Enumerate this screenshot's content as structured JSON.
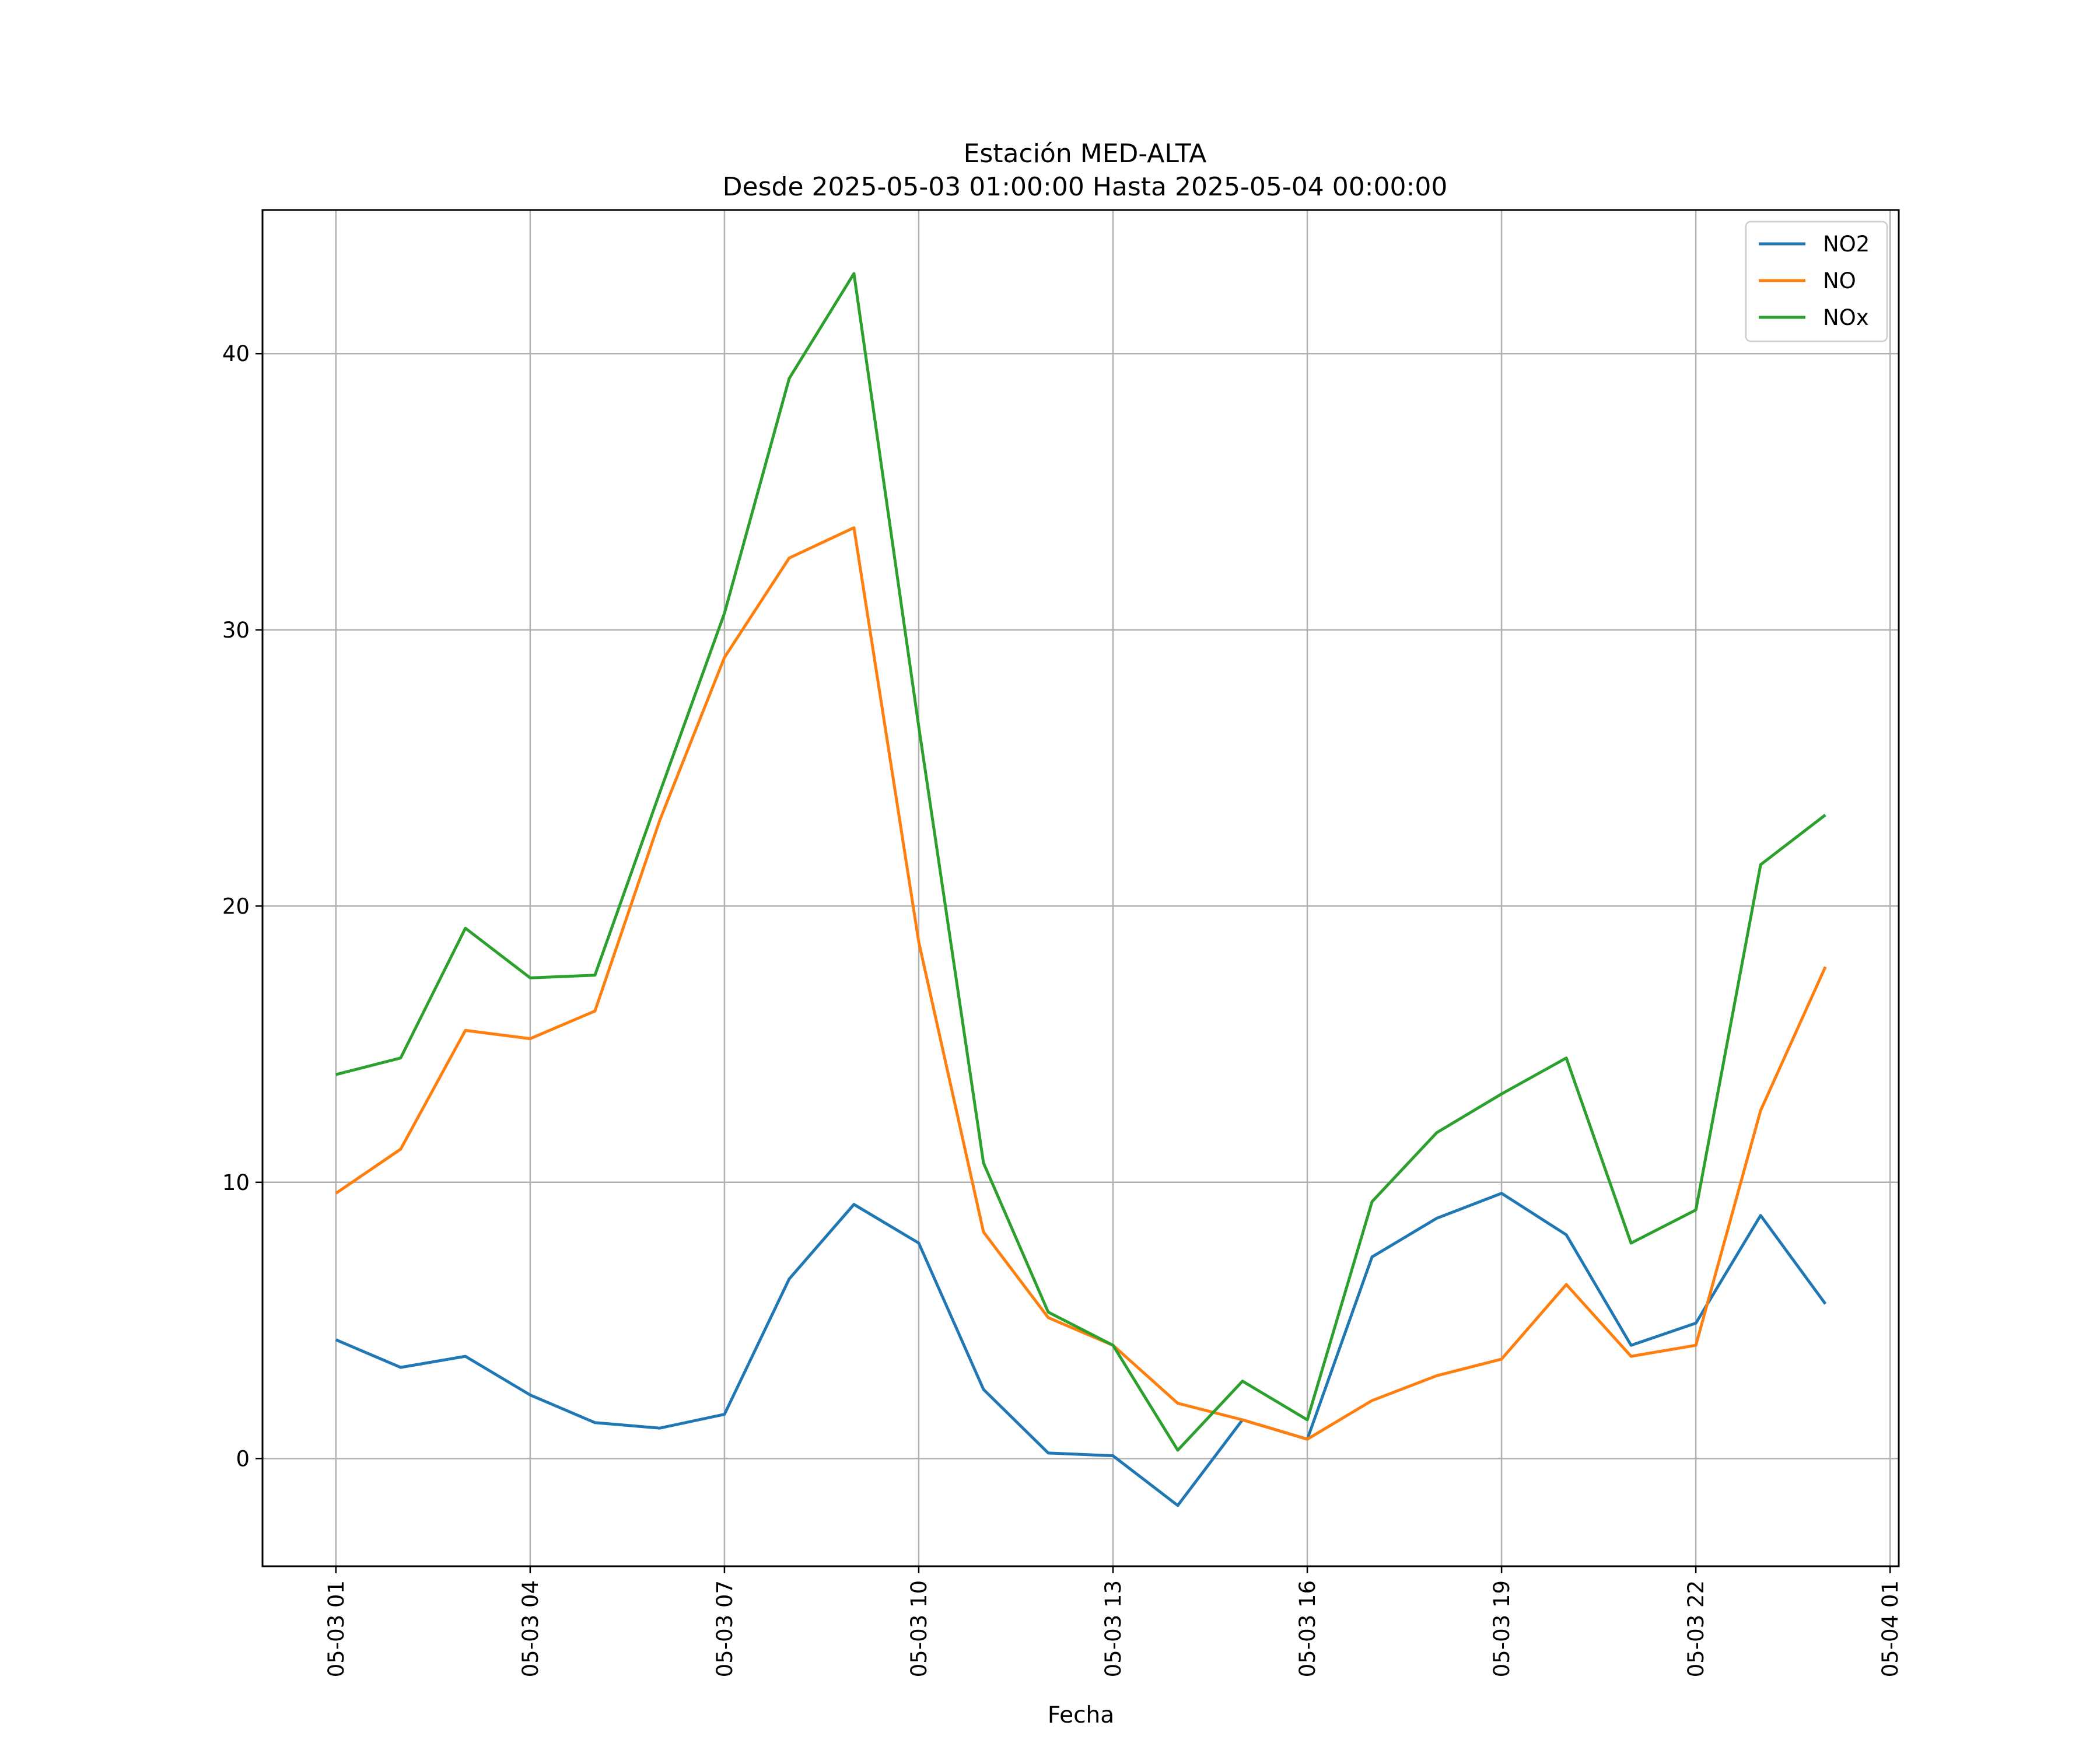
{
  "chart_data": {
    "type": "line",
    "title": "Estación MED-ALTA",
    "subtitle": "Desde 2025-05-03 01:00:00 Hasta 2025-05-04 00:00:00",
    "xlabel": "Fecha",
    "ylabel": "",
    "x": [
      "2025-05-03 01:00",
      "2025-05-03 02:00",
      "2025-05-03 03:00",
      "2025-05-03 04:00",
      "2025-05-03 05:00",
      "2025-05-03 06:00",
      "2025-05-03 07:00",
      "2025-05-03 08:00",
      "2025-05-03 09:00",
      "2025-05-03 10:00",
      "2025-05-03 11:00",
      "2025-05-03 12:00",
      "2025-05-03 13:00",
      "2025-05-03 14:00",
      "2025-05-03 15:00",
      "2025-05-03 16:00",
      "2025-05-03 17:00",
      "2025-05-03 18:00",
      "2025-05-03 19:00",
      "2025-05-03 20:00",
      "2025-05-03 21:00",
      "2025-05-03 22:00",
      "2025-05-03 23:00",
      "2025-05-04 00:00"
    ],
    "xlim": [
      "2025-05-02 23:52",
      "2025-05-04 01:08"
    ],
    "xticks": [
      "2025-05-03 01:00",
      "2025-05-03 04:00",
      "2025-05-03 07:00",
      "2025-05-03 10:00",
      "2025-05-03 13:00",
      "2025-05-03 16:00",
      "2025-05-03 19:00",
      "2025-05-03 22:00",
      "2025-05-04 01:00"
    ],
    "xtick_labels": [
      "05-03 01",
      "05-03 04",
      "05-03 07",
      "05-03 10",
      "05-03 13",
      "05-03 16",
      "05-03 19",
      "05-03 22",
      "05-04 01"
    ],
    "ylim": [
      -3.9,
      45.2
    ],
    "yticks": [
      0,
      10,
      20,
      30,
      40
    ],
    "ytick_labels": [
      "0",
      "10",
      "20",
      "30",
      "40"
    ],
    "grid": true,
    "legend_position": "top-right",
    "series": [
      {
        "name": "NO2",
        "color": "#1f77b4",
        "values": [
          4.3,
          3.3,
          3.7,
          2.3,
          1.3,
          1.1,
          1.6,
          6.5,
          9.2,
          7.8,
          2.5,
          0.2,
          0.1,
          -1.7,
          1.4,
          0.7,
          7.3,
          8.7,
          9.6,
          8.1,
          4.1,
          4.9,
          8.8,
          5.6
        ]
      },
      {
        "name": "NO",
        "color": "#ff7f0e",
        "values": [
          9.6,
          11.2,
          15.5,
          15.2,
          16.2,
          23.1,
          29.0,
          32.6,
          33.7,
          18.7,
          8.2,
          5.1,
          4.1,
          2.0,
          1.4,
          0.7,
          2.1,
          3.0,
          3.6,
          6.3,
          3.7,
          4.1,
          12.6,
          17.8
        ]
      },
      {
        "name": "NOx",
        "color": "#2ca02c",
        "values": [
          13.9,
          14.5,
          19.2,
          17.4,
          17.5,
          24.1,
          30.6,
          39.1,
          42.9,
          26.5,
          10.7,
          5.3,
          4.1,
          0.3,
          2.8,
          1.4,
          9.3,
          11.8,
          13.2,
          14.5,
          7.8,
          9.0,
          21.5,
          23.3
        ]
      }
    ]
  }
}
